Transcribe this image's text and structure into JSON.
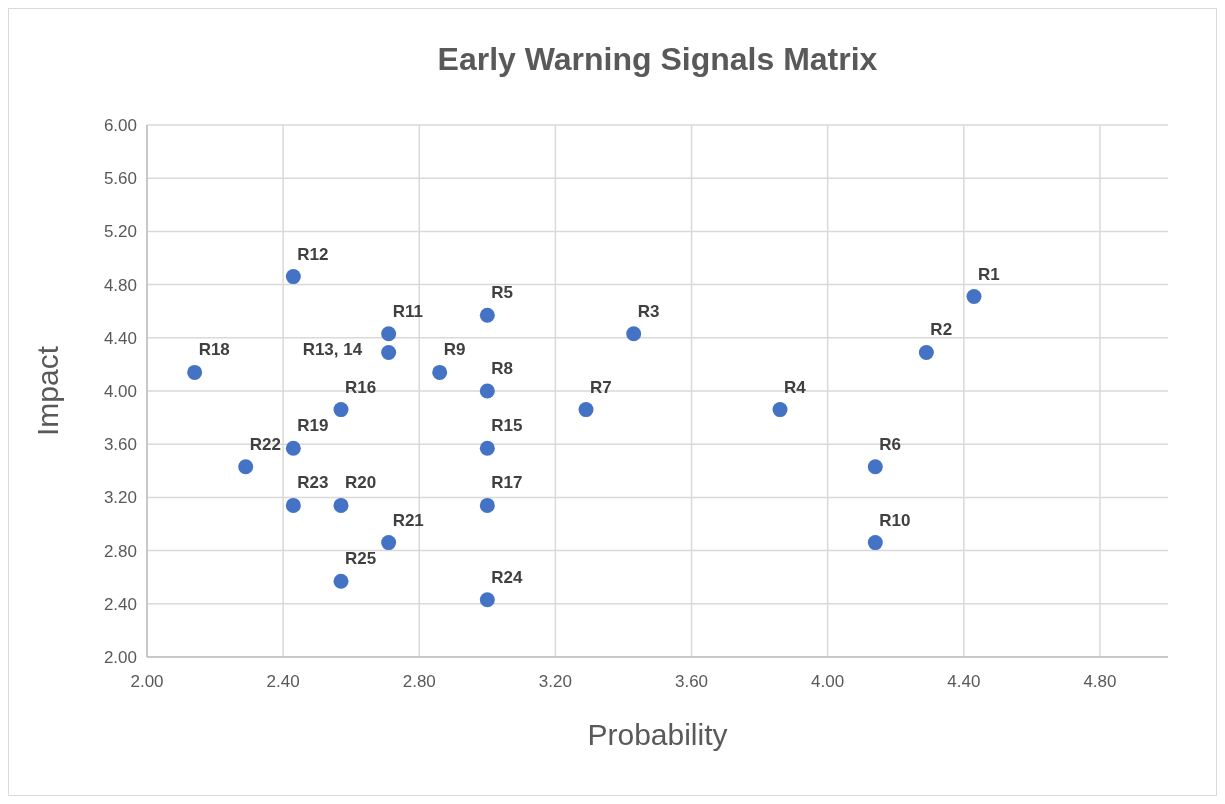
{
  "chart_data": {
    "type": "scatter",
    "title": "Early Warning Signals Matrix",
    "xlabel": "Probability",
    "ylabel": "Impact",
    "xlim": [
      2,
      5
    ],
    "xticks": [
      {
        "value": 2,
        "label": "2.00"
      },
      {
        "value": 2.4,
        "label": "2.40"
      },
      {
        "value": 2.8,
        "label": "2.80"
      },
      {
        "value": 3.2,
        "label": "3.20"
      },
      {
        "value": 3.6,
        "label": "3.60"
      },
      {
        "value": 4,
        "label": "4.00"
      },
      {
        "value": 4.4,
        "label": "4.40"
      },
      {
        "value": 4.8,
        "label": "4.80"
      }
    ],
    "ylim": [
      2,
      6
    ],
    "yticks": [
      {
        "value": 2,
        "label": "2.00"
      },
      {
        "value": 2.4,
        "label": "2.40"
      },
      {
        "value": 2.8,
        "label": "2.80"
      },
      {
        "value": 3.2,
        "label": "3.20"
      },
      {
        "value": 3.6,
        "label": "3.60"
      },
      {
        "value": 4,
        "label": "4.00"
      },
      {
        "value": 4.4,
        "label": "4.40"
      },
      {
        "value": 4.8,
        "label": "4.80"
      },
      {
        "value": 5.2,
        "label": "5.20"
      },
      {
        "value": 5.6,
        "label": "5.60"
      },
      {
        "value": 6,
        "label": "6.00"
      }
    ],
    "grid": true,
    "marker": "circle",
    "series": [
      {
        "color": "#4472c4",
        "x": [
          4.43,
          4.29,
          3.43,
          3.86,
          3.0,
          4.14,
          3.29,
          3.0,
          2.86,
          4.14,
          2.71,
          2.43,
          2.71,
          3.0,
          2.57,
          3.0,
          2.14,
          2.43,
          2.57,
          2.71,
          2.29,
          2.43,
          3.0,
          2.57
        ],
        "values": [
          4.71,
          4.29,
          4.43,
          3.86,
          4.57,
          3.43,
          3.86,
          4.0,
          4.14,
          2.86,
          4.43,
          4.86,
          4.29,
          3.57,
          3.86,
          3.14,
          4.14,
          3.57,
          3.14,
          2.86,
          3.43,
          3.14,
          2.43,
          2.57
        ]
      }
    ],
    "annotations": [
      {
        "text": "R1",
        "x": 4.43,
        "y": 4.71
      },
      {
        "text": "R2",
        "x": 4.29,
        "y": 4.29
      },
      {
        "text": "R3",
        "x": 3.43,
        "y": 4.43
      },
      {
        "text": "R4",
        "x": 3.86,
        "y": 3.86
      },
      {
        "text": "R5",
        "x": 3.0,
        "y": 4.57
      },
      {
        "text": "R6",
        "x": 4.14,
        "y": 3.43
      },
      {
        "text": "R7",
        "x": 3.29,
        "y": 3.86
      },
      {
        "text": "R8",
        "x": 3.0,
        "y": 4.0
      },
      {
        "text": "R9",
        "x": 2.86,
        "y": 4.14
      },
      {
        "text": "R10",
        "x": 4.14,
        "y": 2.86
      },
      {
        "text": "R11",
        "x": 2.71,
        "y": 4.43
      },
      {
        "text": "R12",
        "x": 2.43,
        "y": 4.86
      },
      {
        "text": "R13, 14",
        "x": 2.71,
        "y": 4.29
      },
      {
        "text": "R15",
        "x": 3.0,
        "y": 3.57
      },
      {
        "text": "R16",
        "x": 2.57,
        "y": 3.86
      },
      {
        "text": "R17",
        "x": 3.0,
        "y": 3.14
      },
      {
        "text": "R18",
        "x": 2.14,
        "y": 4.14
      },
      {
        "text": "R19",
        "x": 2.43,
        "y": 3.57
      },
      {
        "text": "R20",
        "x": 2.57,
        "y": 3.14
      },
      {
        "text": "R21",
        "x": 2.71,
        "y": 2.86
      },
      {
        "text": "R22",
        "x": 2.29,
        "y": 3.43
      },
      {
        "text": "R23",
        "x": 2.43,
        "y": 3.14
      },
      {
        "text": "R24",
        "x": 3.0,
        "y": 2.43
      },
      {
        "text": "R25",
        "x": 2.57,
        "y": 2.57
      }
    ]
  }
}
